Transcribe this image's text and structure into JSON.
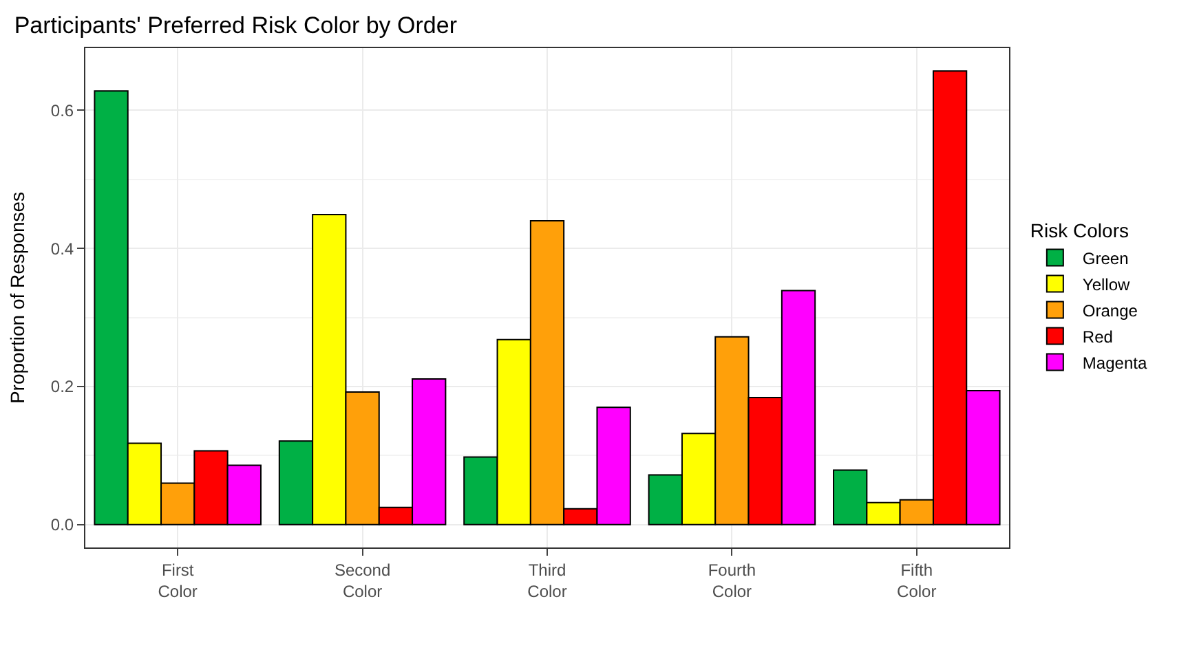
{
  "chart_data": {
    "type": "bar",
    "title": "Participants' Preferred Risk Color by Order",
    "xlabel": null,
    "ylabel": "Proportion of Responses",
    "legend_title": "Risk Colors",
    "categories": [
      "First Color",
      "Second Color",
      "Third Color",
      "Fourth Color",
      "Fifth Color"
    ],
    "series": [
      {
        "name": "Green",
        "color": "#00b045",
        "values": [
          0.628,
          0.121,
          0.098,
          0.072,
          0.079
        ]
      },
      {
        "name": "Yellow",
        "color": "#ffff00",
        "values": [
          0.118,
          0.449,
          0.268,
          0.132,
          0.032
        ]
      },
      {
        "name": "Orange",
        "color": "#ffa00a",
        "values": [
          0.06,
          0.192,
          0.44,
          0.272,
          0.036
        ]
      },
      {
        "name": "Red",
        "color": "#ff0000",
        "values": [
          0.107,
          0.025,
          0.023,
          0.184,
          0.657
        ]
      },
      {
        "name": "Magenta",
        "color": "#ff00ff",
        "values": [
          0.086,
          0.211,
          0.17,
          0.339,
          0.194
        ]
      }
    ],
    "ylim": [
      -0.033,
      0.69
    ],
    "yticks": [
      {
        "value": 0,
        "label": "0.0"
      },
      {
        "value": 0.2,
        "label": "0.2"
      },
      {
        "value": 0.4,
        "label": "0.4"
      },
      {
        "value": 0.6,
        "label": "0.6"
      }
    ],
    "grid": true,
    "legend": "right"
  }
}
